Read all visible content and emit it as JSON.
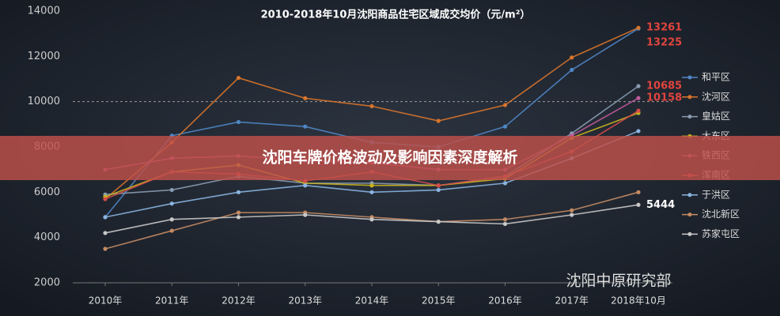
{
  "chart_data": {
    "type": "line",
    "title": "2010-2018年10月沈阳商品住宅区域成交均价（元/m²）",
    "categories": [
      "2010年",
      "2011年",
      "2012年",
      "2013年",
      "2014年",
      "2015年",
      "2016年",
      "2017年",
      "2018年10月"
    ],
    "ylim": [
      2000,
      14000
    ],
    "yticks": [
      2000,
      4000,
      6000,
      8000,
      10000,
      12000,
      14000
    ],
    "reference_line": 10000,
    "series": [
      {
        "name": "和平区",
        "color": "#4f86c6",
        "values": [
          4900,
          8500,
          9100,
          8900,
          8200,
          8000,
          8900,
          11400,
          13225
        ],
        "value_labels": [
          null,
          null,
          null,
          null,
          null,
          null,
          null,
          null,
          "13225"
        ],
        "label_color": "#e0443e"
      },
      {
        "name": "沈河区",
        "color": "#d9742b",
        "values": [
          5700,
          8200,
          11050,
          10150,
          9800,
          9150,
          9850,
          11950,
          13261
        ],
        "value_labels": [
          null,
          null,
          null,
          null,
          null,
          null,
          null,
          null,
          "13261"
        ],
        "label_color": "#e0443e"
      },
      {
        "name": "皇姑区",
        "color": "#8a9bb0",
        "values": [
          5900,
          6100,
          6700,
          6400,
          6400,
          6300,
          6700,
          8600,
          10685
        ],
        "value_labels": [
          null,
          null,
          null,
          null,
          null,
          null,
          null,
          null,
          "10685"
        ],
        "label_color": "#e0443e"
      },
      {
        "name": "大东区",
        "color": "#c9b21f",
        "values": [
          5800,
          6900,
          7200,
          6400,
          6300,
          6300,
          6600,
          8400,
          9500
        ]
      },
      {
        "name": "铁西区",
        "color": "#c05a9a",
        "values": [
          7000,
          7500,
          7600,
          7400,
          7300,
          7000,
          7000,
          8500,
          10158
        ],
        "value_labels": [
          null,
          null,
          null,
          null,
          null,
          null,
          null,
          null,
          "10158"
        ],
        "label_color": "#e0443e"
      },
      {
        "name": "浑南区",
        "color": "#d64a4a",
        "values": [
          5700,
          6900,
          6800,
          6500,
          6900,
          6300,
          6700,
          7800,
          9600
        ]
      },
      {
        "name": "于洪区",
        "color": "#8ab4e0",
        "values": [
          4900,
          5500,
          6000,
          6300,
          6000,
          6100,
          6400,
          7500,
          8700
        ]
      },
      {
        "name": "沈北新区",
        "color": "#c58b63",
        "values": [
          3500,
          4300,
          5100,
          5100,
          4900,
          4700,
          4800,
          5200,
          6000
        ]
      },
      {
        "name": "苏家屯区",
        "color": "#c8c8c8",
        "values": [
          4200,
          4800,
          4900,
          5000,
          4800,
          4700,
          4600,
          5000,
          5444
        ],
        "value_labels": [
          null,
          null,
          null,
          null,
          null,
          null,
          null,
          null,
          "5444"
        ],
        "label_color": "#ffffff"
      }
    ]
  },
  "watermark": "沈阳中原研究部",
  "banner": {
    "title": "沈阳车牌价格波动及影响因素深度解析"
  }
}
